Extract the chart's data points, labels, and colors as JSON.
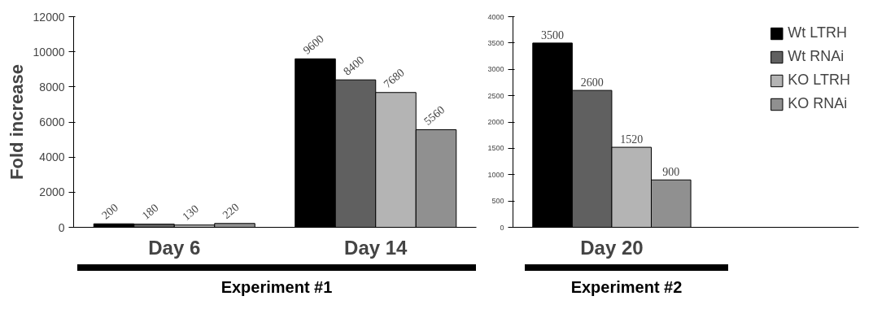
{
  "chart_data": [
    {
      "type": "bar",
      "ylabel": "Fold increase",
      "categories": [
        "Day 6",
        "Day 14"
      ],
      "ylim": [
        0,
        12000
      ],
      "yticks": [
        0,
        2000,
        4000,
        6000,
        8000,
        10000,
        12000
      ],
      "grid": false,
      "legend": false,
      "data_labels": true,
      "annotations": [
        "Experiment #1"
      ],
      "series": [
        {
          "color": "#000000",
          "values": [
            200,
            9600
          ]
        },
        {
          "color": "#606060",
          "values": [
            180,
            8400
          ]
        },
        {
          "color": "#b4b4b4",
          "values": [
            130,
            7680
          ]
        },
        {
          "color": "#909090",
          "values": [
            220,
            5560
          ]
        }
      ]
    },
    {
      "type": "bar",
      "categories": [
        "Day 20"
      ],
      "ylim": [
        0,
        4000
      ],
      "yticks": [
        0,
        500,
        1000,
        1500,
        2000,
        2500,
        3000,
        3500,
        4000
      ],
      "grid": false,
      "legend": "top right",
      "data_labels": true,
      "annotations": [
        "Experiment #2"
      ],
      "series": [
        {
          "name": "Wt LTRH",
          "color": "#000000",
          "values": [
            3500
          ]
        },
        {
          "name": "Wt RNAi",
          "color": "#606060",
          "values": [
            2600
          ]
        },
        {
          "name": "KO LTRH",
          "color": "#b4b4b4",
          "values": [
            1520
          ]
        },
        {
          "name": "KO RNAi",
          "color": "#909090",
          "values": [
            900
          ]
        }
      ]
    }
  ]
}
